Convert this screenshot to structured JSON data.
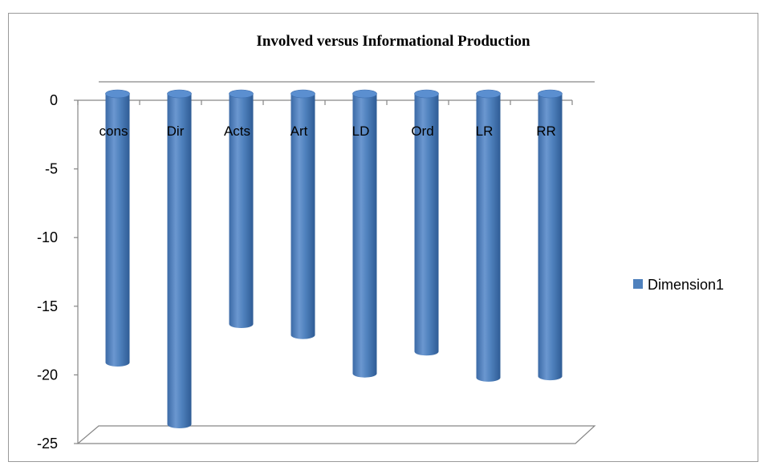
{
  "chart_data": {
    "type": "bar",
    "orientation": "vertical-3d-cylinder",
    "title": "Involved versus Informational Production",
    "categories": [
      "cons",
      "Dir",
      "Acts",
      "Art",
      "LD",
      "Ord",
      "LR",
      "RR"
    ],
    "series": [
      {
        "name": "Dimension1",
        "values": [
          -19.1,
          -23.6,
          -16.3,
          -17.1,
          -19.9,
          -18.3,
          -20.2,
          -20.1
        ]
      }
    ],
    "y_ticks": [
      0,
      -5,
      -10,
      -15,
      -20,
      -25
    ],
    "ylim": [
      -25,
      0
    ],
    "legend_position": "right",
    "grid": false,
    "colors": {
      "bar": "#4f81bd",
      "bar_dark": "#3a6ba5",
      "bar_light": "#7fa6d9"
    }
  }
}
